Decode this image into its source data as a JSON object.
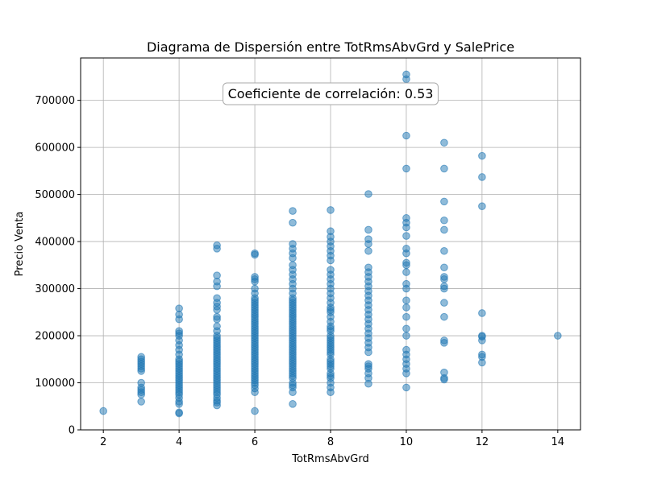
{
  "chart_data": {
    "type": "scatter",
    "title": "Diagrama de Dispersión entre TotRmsAbvGrd y SalePrice",
    "xlabel": "TotRmsAbvGrd",
    "ylabel": "Precio Venta",
    "xlim": [
      1.4,
      14.6
    ],
    "ylim": [
      0,
      790000
    ],
    "xticks": [
      2,
      4,
      6,
      8,
      10,
      12,
      14
    ],
    "yticks": [
      0,
      100000,
      200000,
      300000,
      400000,
      500000,
      600000,
      700000
    ],
    "grid": true,
    "point_color": "#1f77b4",
    "annotation": "Coeficiente de correlación: 0.53",
    "points": [
      [
        2,
        40000
      ],
      [
        3,
        60000
      ],
      [
        3,
        75000
      ],
      [
        3,
        80000
      ],
      [
        3,
        85000
      ],
      [
        3,
        90000
      ],
      [
        3,
        100000
      ],
      [
        3,
        125000
      ],
      [
        3,
        130000
      ],
      [
        3,
        135000
      ],
      [
        3,
        140000
      ],
      [
        3,
        145000
      ],
      [
        3,
        150000
      ],
      [
        3,
        155000
      ],
      [
        4,
        35000
      ],
      [
        4,
        37000
      ],
      [
        4,
        55000
      ],
      [
        4,
        60000
      ],
      [
        4,
        68000
      ],
      [
        4,
        75000
      ],
      [
        4,
        80000
      ],
      [
        4,
        85000
      ],
      [
        4,
        90000
      ],
      [
        4,
        95000
      ],
      [
        4,
        100000
      ],
      [
        4,
        105000
      ],
      [
        4,
        110000
      ],
      [
        4,
        115000
      ],
      [
        4,
        120000
      ],
      [
        4,
        125000
      ],
      [
        4,
        130000
      ],
      [
        4,
        135000
      ],
      [
        4,
        140000
      ],
      [
        4,
        145000
      ],
      [
        4,
        150000
      ],
      [
        4,
        160000
      ],
      [
        4,
        170000
      ],
      [
        4,
        180000
      ],
      [
        4,
        190000
      ],
      [
        4,
        200000
      ],
      [
        4,
        205000
      ],
      [
        4,
        210000
      ],
      [
        4,
        235000
      ],
      [
        4,
        245000
      ],
      [
        4,
        258000
      ],
      [
        5,
        52000
      ],
      [
        5,
        58000
      ],
      [
        5,
        62000
      ],
      [
        5,
        68000
      ],
      [
        5,
        75000
      ],
      [
        5,
        80000
      ],
      [
        5,
        85000
      ],
      [
        5,
        90000
      ],
      [
        5,
        95000
      ],
      [
        5,
        100000
      ],
      [
        5,
        105000
      ],
      [
        5,
        110000
      ],
      [
        5,
        115000
      ],
      [
        5,
        120000
      ],
      [
        5,
        125000
      ],
      [
        5,
        130000
      ],
      [
        5,
        135000
      ],
      [
        5,
        140000
      ],
      [
        5,
        145000
      ],
      [
        5,
        150000
      ],
      [
        5,
        155000
      ],
      [
        5,
        160000
      ],
      [
        5,
        165000
      ],
      [
        5,
        170000
      ],
      [
        5,
        175000
      ],
      [
        5,
        180000
      ],
      [
        5,
        185000
      ],
      [
        5,
        190000
      ],
      [
        5,
        195000
      ],
      [
        5,
        200000
      ],
      [
        5,
        210000
      ],
      [
        5,
        220000
      ],
      [
        5,
        235000
      ],
      [
        5,
        240000
      ],
      [
        5,
        255000
      ],
      [
        5,
        262000
      ],
      [
        5,
        270000
      ],
      [
        5,
        280000
      ],
      [
        5,
        305000
      ],
      [
        5,
        315000
      ],
      [
        5,
        328000
      ],
      [
        5,
        385000
      ],
      [
        5,
        392000
      ],
      [
        6,
        40000
      ],
      [
        6,
        80000
      ],
      [
        6,
        88000
      ],
      [
        6,
        95000
      ],
      [
        6,
        100000
      ],
      [
        6,
        105000
      ],
      [
        6,
        110000
      ],
      [
        6,
        115000
      ],
      [
        6,
        120000
      ],
      [
        6,
        125000
      ],
      [
        6,
        130000
      ],
      [
        6,
        135000
      ],
      [
        6,
        140000
      ],
      [
        6,
        145000
      ],
      [
        6,
        150000
      ],
      [
        6,
        155000
      ],
      [
        6,
        160000
      ],
      [
        6,
        165000
      ],
      [
        6,
        170000
      ],
      [
        6,
        175000
      ],
      [
        6,
        180000
      ],
      [
        6,
        185000
      ],
      [
        6,
        190000
      ],
      [
        6,
        195000
      ],
      [
        6,
        200000
      ],
      [
        6,
        205000
      ],
      [
        6,
        210000
      ],
      [
        6,
        215000
      ],
      [
        6,
        220000
      ],
      [
        6,
        225000
      ],
      [
        6,
        230000
      ],
      [
        6,
        235000
      ],
      [
        6,
        240000
      ],
      [
        6,
        245000
      ],
      [
        6,
        250000
      ],
      [
        6,
        255000
      ],
      [
        6,
        260000
      ],
      [
        6,
        265000
      ],
      [
        6,
        270000
      ],
      [
        6,
        275000
      ],
      [
        6,
        280000
      ],
      [
        6,
        290000
      ],
      [
        6,
        300000
      ],
      [
        6,
        315000
      ],
      [
        6,
        320000
      ],
      [
        6,
        325000
      ],
      [
        6,
        372000
      ],
      [
        6,
        375000
      ],
      [
        7,
        55000
      ],
      [
        7,
        80000
      ],
      [
        7,
        90000
      ],
      [
        7,
        95000
      ],
      [
        7,
        100000
      ],
      [
        7,
        110000
      ],
      [
        7,
        115000
      ],
      [
        7,
        120000
      ],
      [
        7,
        125000
      ],
      [
        7,
        130000
      ],
      [
        7,
        135000
      ],
      [
        7,
        140000
      ],
      [
        7,
        145000
      ],
      [
        7,
        150000
      ],
      [
        7,
        155000
      ],
      [
        7,
        160000
      ],
      [
        7,
        165000
      ],
      [
        7,
        170000
      ],
      [
        7,
        175000
      ],
      [
        7,
        180000
      ],
      [
        7,
        185000
      ],
      [
        7,
        190000
      ],
      [
        7,
        195000
      ],
      [
        7,
        200000
      ],
      [
        7,
        205000
      ],
      [
        7,
        210000
      ],
      [
        7,
        215000
      ],
      [
        7,
        220000
      ],
      [
        7,
        225000
      ],
      [
        7,
        230000
      ],
      [
        7,
        235000
      ],
      [
        7,
        240000
      ],
      [
        7,
        245000
      ],
      [
        7,
        250000
      ],
      [
        7,
        255000
      ],
      [
        7,
        260000
      ],
      [
        7,
        265000
      ],
      [
        7,
        270000
      ],
      [
        7,
        275000
      ],
      [
        7,
        280000
      ],
      [
        7,
        290000
      ],
      [
        7,
        300000
      ],
      [
        7,
        310000
      ],
      [
        7,
        320000
      ],
      [
        7,
        330000
      ],
      [
        7,
        340000
      ],
      [
        7,
        350000
      ],
      [
        7,
        365000
      ],
      [
        7,
        375000
      ],
      [
        7,
        385000
      ],
      [
        7,
        395000
      ],
      [
        7,
        440000
      ],
      [
        7,
        465000
      ],
      [
        8,
        80000
      ],
      [
        8,
        90000
      ],
      [
        8,
        100000
      ],
      [
        8,
        110000
      ],
      [
        8,
        115000
      ],
      [
        8,
        120000
      ],
      [
        8,
        130000
      ],
      [
        8,
        135000
      ],
      [
        8,
        140000
      ],
      [
        8,
        145000
      ],
      [
        8,
        150000
      ],
      [
        8,
        160000
      ],
      [
        8,
        165000
      ],
      [
        8,
        170000
      ],
      [
        8,
        175000
      ],
      [
        8,
        180000
      ],
      [
        8,
        185000
      ],
      [
        8,
        190000
      ],
      [
        8,
        195000
      ],
      [
        8,
        200000
      ],
      [
        8,
        210000
      ],
      [
        8,
        215000
      ],
      [
        8,
        220000
      ],
      [
        8,
        230000
      ],
      [
        8,
        240000
      ],
      [
        8,
        250000
      ],
      [
        8,
        255000
      ],
      [
        8,
        260000
      ],
      [
        8,
        270000
      ],
      [
        8,
        280000
      ],
      [
        8,
        290000
      ],
      [
        8,
        300000
      ],
      [
        8,
        310000
      ],
      [
        8,
        320000
      ],
      [
        8,
        330000
      ],
      [
        8,
        340000
      ],
      [
        8,
        360000
      ],
      [
        8,
        370000
      ],
      [
        8,
        380000
      ],
      [
        8,
        390000
      ],
      [
        8,
        400000
      ],
      [
        8,
        410000
      ],
      [
        8,
        422000
      ],
      [
        8,
        467000
      ],
      [
        9,
        98000
      ],
      [
        9,
        110000
      ],
      [
        9,
        120000
      ],
      [
        9,
        130000
      ],
      [
        9,
        135000
      ],
      [
        9,
        140000
      ],
      [
        9,
        165000
      ],
      [
        9,
        175000
      ],
      [
        9,
        185000
      ],
      [
        9,
        195000
      ],
      [
        9,
        205000
      ],
      [
        9,
        215000
      ],
      [
        9,
        225000
      ],
      [
        9,
        235000
      ],
      [
        9,
        245000
      ],
      [
        9,
        255000
      ],
      [
        9,
        265000
      ],
      [
        9,
        275000
      ],
      [
        9,
        285000
      ],
      [
        9,
        295000
      ],
      [
        9,
        305000
      ],
      [
        9,
        315000
      ],
      [
        9,
        325000
      ],
      [
        9,
        335000
      ],
      [
        9,
        345000
      ],
      [
        9,
        380000
      ],
      [
        9,
        395000
      ],
      [
        9,
        405000
      ],
      [
        9,
        425000
      ],
      [
        9,
        501000
      ],
      [
        10,
        90000
      ],
      [
        10,
        120000
      ],
      [
        10,
        130000
      ],
      [
        10,
        140000
      ],
      [
        10,
        150000
      ],
      [
        10,
        160000
      ],
      [
        10,
        170000
      ],
      [
        10,
        200000
      ],
      [
        10,
        215000
      ],
      [
        10,
        240000
      ],
      [
        10,
        260000
      ],
      [
        10,
        275000
      ],
      [
        10,
        300000
      ],
      [
        10,
        310000
      ],
      [
        10,
        335000
      ],
      [
        10,
        350000
      ],
      [
        10,
        355000
      ],
      [
        10,
        375000
      ],
      [
        10,
        385000
      ],
      [
        10,
        412000
      ],
      [
        10,
        430000
      ],
      [
        10,
        440000
      ],
      [
        10,
        450000
      ],
      [
        10,
        555000
      ],
      [
        10,
        625000
      ],
      [
        10,
        745000
      ],
      [
        10,
        755000
      ],
      [
        11,
        107000
      ],
      [
        11,
        110000
      ],
      [
        11,
        122000
      ],
      [
        11,
        185000
      ],
      [
        11,
        190000
      ],
      [
        11,
        240000
      ],
      [
        11,
        270000
      ],
      [
        11,
        300000
      ],
      [
        11,
        305000
      ],
      [
        11,
        320000
      ],
      [
        11,
        325000
      ],
      [
        11,
        345000
      ],
      [
        11,
        380000
      ],
      [
        11,
        425000
      ],
      [
        11,
        445000
      ],
      [
        11,
        485000
      ],
      [
        11,
        555000
      ],
      [
        11,
        610000
      ],
      [
        12,
        143000
      ],
      [
        12,
        155000
      ],
      [
        12,
        160000
      ],
      [
        12,
        190000
      ],
      [
        12,
        198000
      ],
      [
        12,
        200000
      ],
      [
        12,
        248000
      ],
      [
        12,
        475000
      ],
      [
        12,
        537000
      ],
      [
        12,
        582000
      ],
      [
        14,
        200000
      ]
    ]
  }
}
